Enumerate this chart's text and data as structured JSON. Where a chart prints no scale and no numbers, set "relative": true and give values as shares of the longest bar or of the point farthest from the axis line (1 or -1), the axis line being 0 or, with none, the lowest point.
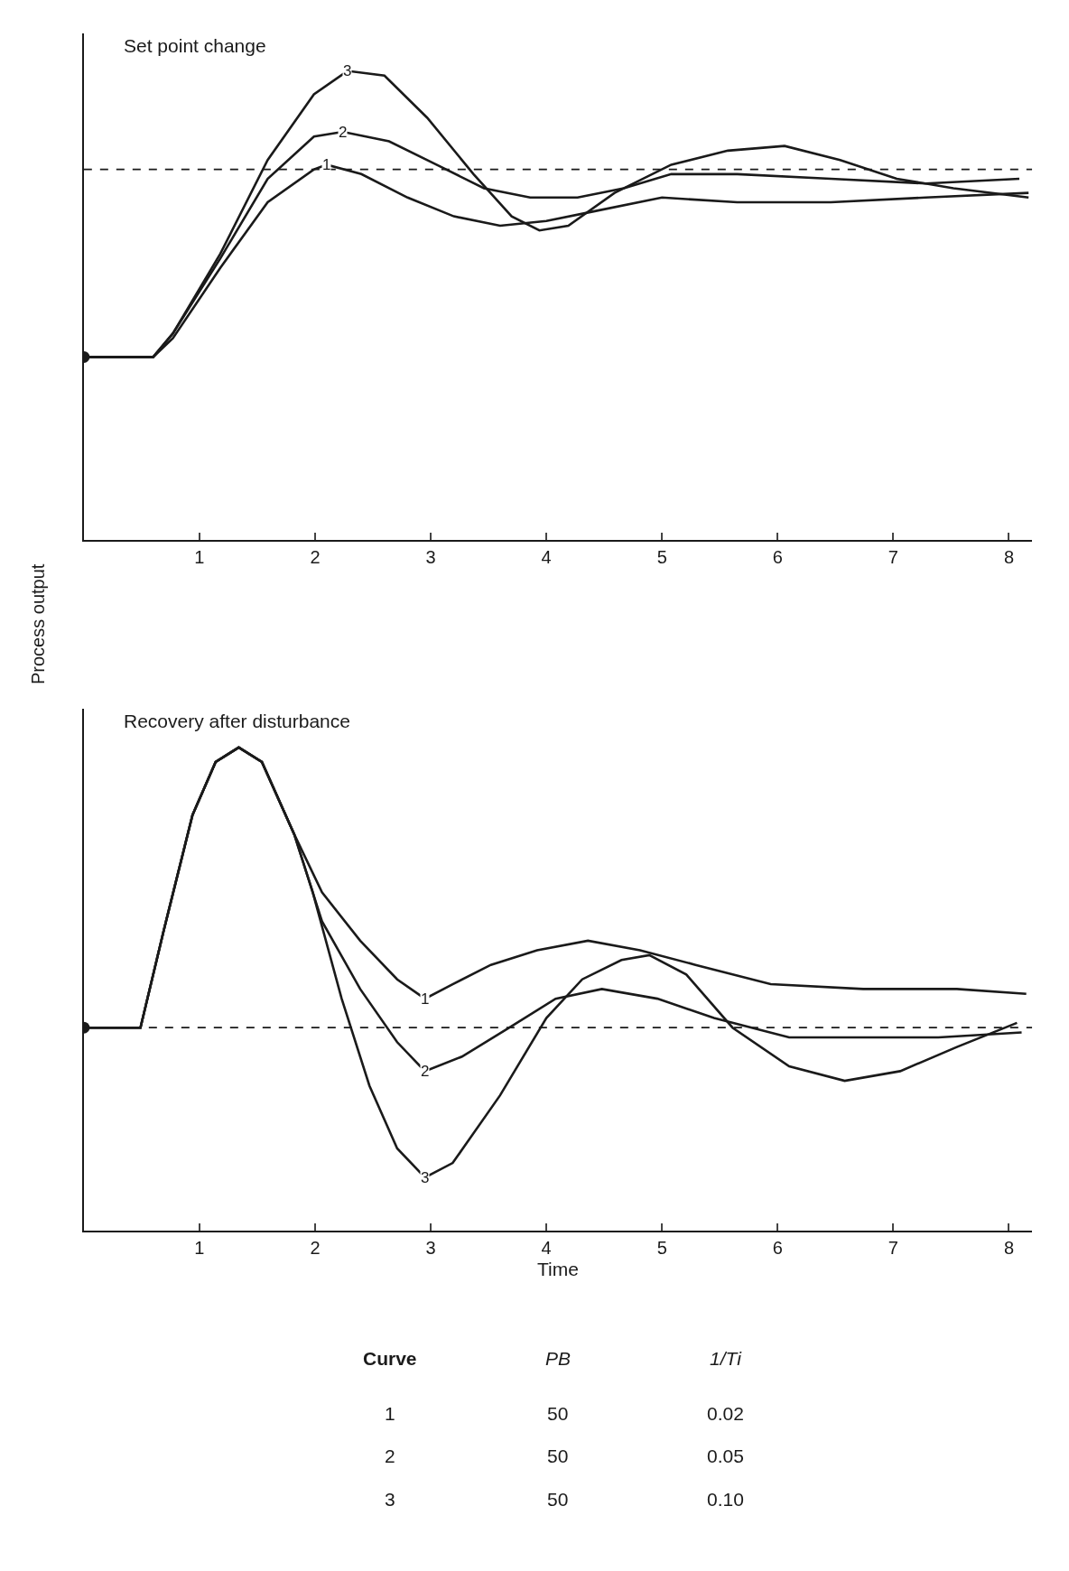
{
  "chart_data": [
    {
      "type": "line",
      "title": "Set point change",
      "ylabel": "Process output",
      "relative": true,
      "xlim": [
        0,
        8.2
      ],
      "xticks": [
        1,
        2,
        3,
        4,
        5,
        6,
        7,
        8
      ],
      "series": [
        {
          "color": "#1a1a1a",
          "x": [
            0,
            0.5,
            0.6,
            0.77,
            1.18,
            1.59,
            1.99,
            2.1,
            2.4,
            2.8,
            3.2,
            3.6,
            4.0,
            4.4,
            5.0,
            5.65,
            6.46,
            7.28,
            8.17
          ],
          "values": [
            0.39,
            0.39,
            0.39,
            0.43,
            0.58,
            0.72,
            0.79,
            0.8,
            0.78,
            0.73,
            0.69,
            0.67,
            0.68,
            0.7,
            0.73,
            0.72,
            0.72,
            0.73,
            0.74
          ]
        },
        {
          "color": "#1a1a1a",
          "x": [
            0,
            0.5,
            0.6,
            0.77,
            1.18,
            1.59,
            1.99,
            2.24,
            2.64,
            3.05,
            3.46,
            3.86,
            4.27,
            4.67,
            5.08,
            5.65,
            6.46,
            7.28,
            8.09
          ],
          "values": [
            0.39,
            0.39,
            0.39,
            0.44,
            0.6,
            0.77,
            0.86,
            0.87,
            0.85,
            0.8,
            0.75,
            0.73,
            0.73,
            0.75,
            0.78,
            0.78,
            0.77,
            0.76,
            0.77
          ]
        },
        {
          "color": "#1a1a1a",
          "x": [
            0,
            0.5,
            0.6,
            0.77,
            1.18,
            1.59,
            1.99,
            2.28,
            2.6,
            2.97,
            3.37,
            3.7,
            3.94,
            4.19,
            4.59,
            5.08,
            5.57,
            6.06,
            6.54,
            7.03,
            7.52,
            8.17
          ],
          "values": [
            0.39,
            0.39,
            0.39,
            0.44,
            0.61,
            0.81,
            0.95,
            1.0,
            0.99,
            0.9,
            0.78,
            0.69,
            0.66,
            0.67,
            0.74,
            0.8,
            0.83,
            0.84,
            0.81,
            0.77,
            0.75,
            0.73
          ]
        },
        {
          "type": "scatter",
          "marker": "circle",
          "color": "#1a1a1a",
          "x": [
            0
          ],
          "values": [
            0.39
          ]
        }
      ],
      "ref_lines": [
        {
          "axis": "y",
          "value": 0.79,
          "line_style": "dashed",
          "color": "#1a1a1a"
        }
      ],
      "annotations": [
        {
          "text": "1",
          "x": 2.1,
          "y": 0.8
        },
        {
          "text": "2",
          "x": 2.24,
          "y": 0.87
        },
        {
          "text": "3",
          "x": 2.28,
          "y": 1.0
        }
      ]
    },
    {
      "type": "line",
      "title": "Recovery after disturbance",
      "xlabel": "Time",
      "relative": true,
      "xlim": [
        0,
        8.2
      ],
      "xticks": [
        1,
        2,
        3,
        4,
        5,
        6,
        7,
        8
      ],
      "series": [
        {
          "color": "#1a1a1a",
          "x": [
            0,
            0.49,
            0.69,
            0.94,
            1.14,
            1.34,
            1.54,
            1.82,
            2.06,
            2.39,
            2.71,
            2.95,
            3.19,
            3.52,
            3.92,
            4.36,
            4.81,
            5.29,
            5.94,
            6.74,
            7.55,
            8.15
          ],
          "values": [
            0.42,
            0.42,
            0.62,
            0.86,
            0.97,
            1.0,
            0.97,
            0.82,
            0.7,
            0.6,
            0.52,
            0.48,
            0.51,
            0.55,
            0.58,
            0.6,
            0.58,
            0.55,
            0.51,
            0.5,
            0.5,
            0.49
          ]
        },
        {
          "color": "#1a1a1a",
          "x": [
            0,
            0.49,
            0.69,
            0.94,
            1.14,
            1.34,
            1.54,
            1.82,
            2.06,
            2.39,
            2.71,
            2.95,
            3.27,
            3.68,
            4.08,
            4.48,
            4.96,
            5.45,
            6.1,
            6.74,
            7.39,
            8.11
          ],
          "values": [
            0.42,
            0.42,
            0.62,
            0.86,
            0.97,
            1.0,
            0.97,
            0.82,
            0.64,
            0.5,
            0.39,
            0.33,
            0.36,
            0.42,
            0.48,
            0.5,
            0.48,
            0.44,
            0.4,
            0.4,
            0.4,
            0.41
          ]
        },
        {
          "color": "#1a1a1a",
          "x": [
            0,
            0.49,
            0.69,
            0.94,
            1.14,
            1.34,
            1.54,
            1.82,
            1.98,
            2.23,
            2.47,
            2.71,
            2.95,
            3.19,
            3.6,
            4.0,
            4.31,
            4.65,
            4.89,
            5.21,
            5.61,
            6.1,
            6.58,
            7.06,
            7.55,
            8.07
          ],
          "values": [
            0.42,
            0.42,
            0.62,
            0.86,
            0.97,
            1.0,
            0.97,
            0.82,
            0.7,
            0.48,
            0.3,
            0.17,
            0.11,
            0.14,
            0.28,
            0.44,
            0.52,
            0.56,
            0.57,
            0.53,
            0.42,
            0.34,
            0.31,
            0.33,
            0.38,
            0.43
          ]
        },
        {
          "type": "scatter",
          "marker": "circle",
          "color": "#1a1a1a",
          "x": [
            0
          ],
          "values": [
            0.42
          ]
        }
      ],
      "ref_lines": [
        {
          "axis": "y",
          "value": 0.42,
          "line_style": "dashed",
          "color": "#1a1a1a"
        }
      ],
      "annotations": [
        {
          "text": "1",
          "x": 2.95,
          "y": 0.48
        },
        {
          "text": "2",
          "x": 2.95,
          "y": 0.33
        },
        {
          "text": "3",
          "x": 2.95,
          "y": 0.11
        },
        "Curve",
        "PB",
        "1/Ti",
        "1",
        "50",
        "0.02",
        "2",
        "50",
        "0.05",
        "3",
        "50",
        "0.10"
      ]
    }
  ]
}
